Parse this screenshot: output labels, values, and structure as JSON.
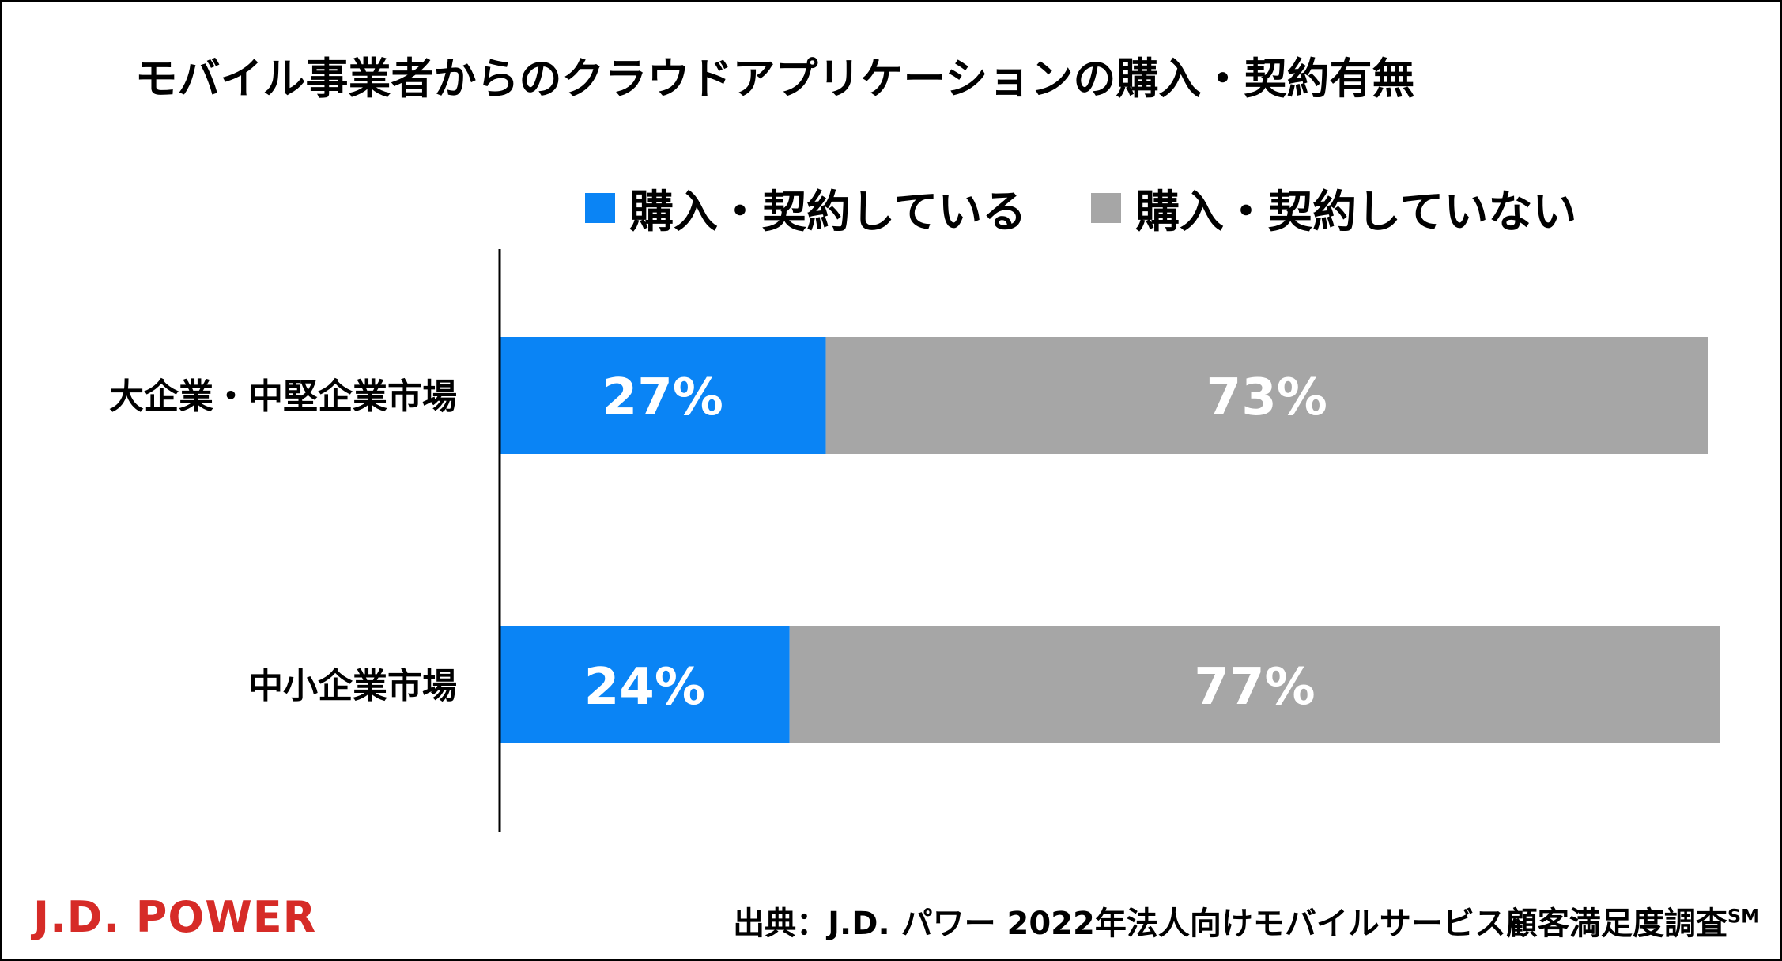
{
  "chart_data": {
    "type": "bar",
    "orientation": "horizontal",
    "stacked": true,
    "title": "モバイル事業者からのクラウドアプリケーションの購入・契約有無",
    "categories": [
      "大企業・中堅企業市場",
      "中小企業市場"
    ],
    "series": [
      {
        "name": "購入・契約している",
        "values": [
          27,
          24
        ],
        "labels": [
          "27%",
          "24%"
        ],
        "color": "#0a84f5"
      },
      {
        "name": "購入・契約していない",
        "values": [
          73,
          77
        ],
        "labels": [
          "73%",
          "77%"
        ],
        "color": "#a6a6a6"
      }
    ],
    "xlim": [
      0,
      100
    ],
    "unit": "%",
    "grid": false,
    "legend_position": "top"
  },
  "footer": {
    "logo": "J.D. POWER",
    "source": "出典：J.D. パワー 2022年法人向けモバイルサービス顧客満足度調査",
    "source_mark": "SM"
  },
  "colors": {
    "logo": "#d62b27",
    "data_label": "#ffffff",
    "axis": "#000000"
  }
}
